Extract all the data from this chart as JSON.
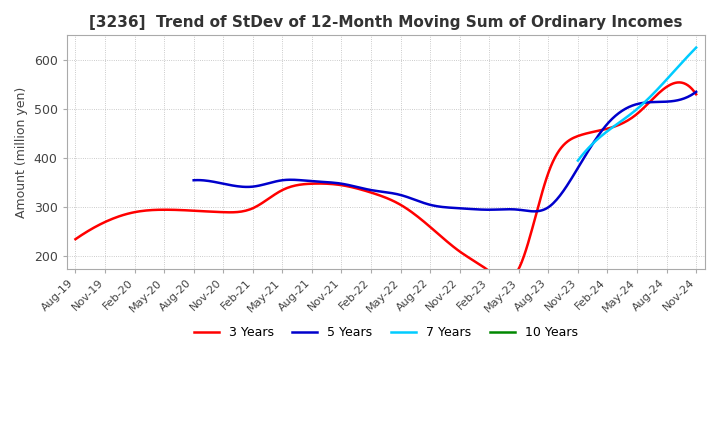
{
  "title": "[3236]  Trend of StDev of 12-Month Moving Sum of Ordinary Incomes",
  "ylabel": "Amount (million yen)",
  "ylim": [
    175,
    650
  ],
  "yticks": [
    200,
    300,
    400,
    500,
    600
  ],
  "background_color": "#ffffff",
  "grid_color": "#bbbbbb",
  "legend_labels": [
    "3 Years",
    "5 Years",
    "7 Years",
    "10 Years"
  ],
  "legend_colors": [
    "#ff0000",
    "#0000cc",
    "#00ccff",
    "#008800"
  ],
  "x_labels": [
    "Aug-19",
    "Nov-19",
    "Feb-20",
    "May-20",
    "Aug-20",
    "Nov-20",
    "Feb-21",
    "May-21",
    "Aug-21",
    "Nov-21",
    "Feb-22",
    "May-22",
    "Aug-22",
    "Nov-22",
    "Feb-23",
    "May-23",
    "Aug-23",
    "Nov-23",
    "Feb-24",
    "May-24",
    "Aug-24",
    "Nov-24"
  ],
  "series_3y": [
    235,
    270,
    290,
    295,
    293,
    290,
    298,
    335,
    348,
    345,
    330,
    305,
    260,
    210,
    170,
    175,
    370,
    445,
    460,
    490,
    545,
    530
  ],
  "series_5y": [
    null,
    null,
    null,
    null,
    355,
    348,
    342,
    355,
    353,
    348,
    335,
    325,
    305,
    298,
    295,
    295,
    300,
    380,
    470,
    510,
    515,
    535
  ],
  "series_7y": [
    null,
    null,
    null,
    null,
    null,
    null,
    null,
    null,
    null,
    null,
    null,
    null,
    null,
    null,
    null,
    null,
    null,
    395,
    455,
    500,
    560,
    625
  ],
  "series_10y": [
    null,
    null,
    null,
    null,
    null,
    null,
    null,
    null,
    null,
    null,
    null,
    null,
    null,
    null,
    null,
    null,
    null,
    null,
    null,
    null,
    null,
    null
  ]
}
